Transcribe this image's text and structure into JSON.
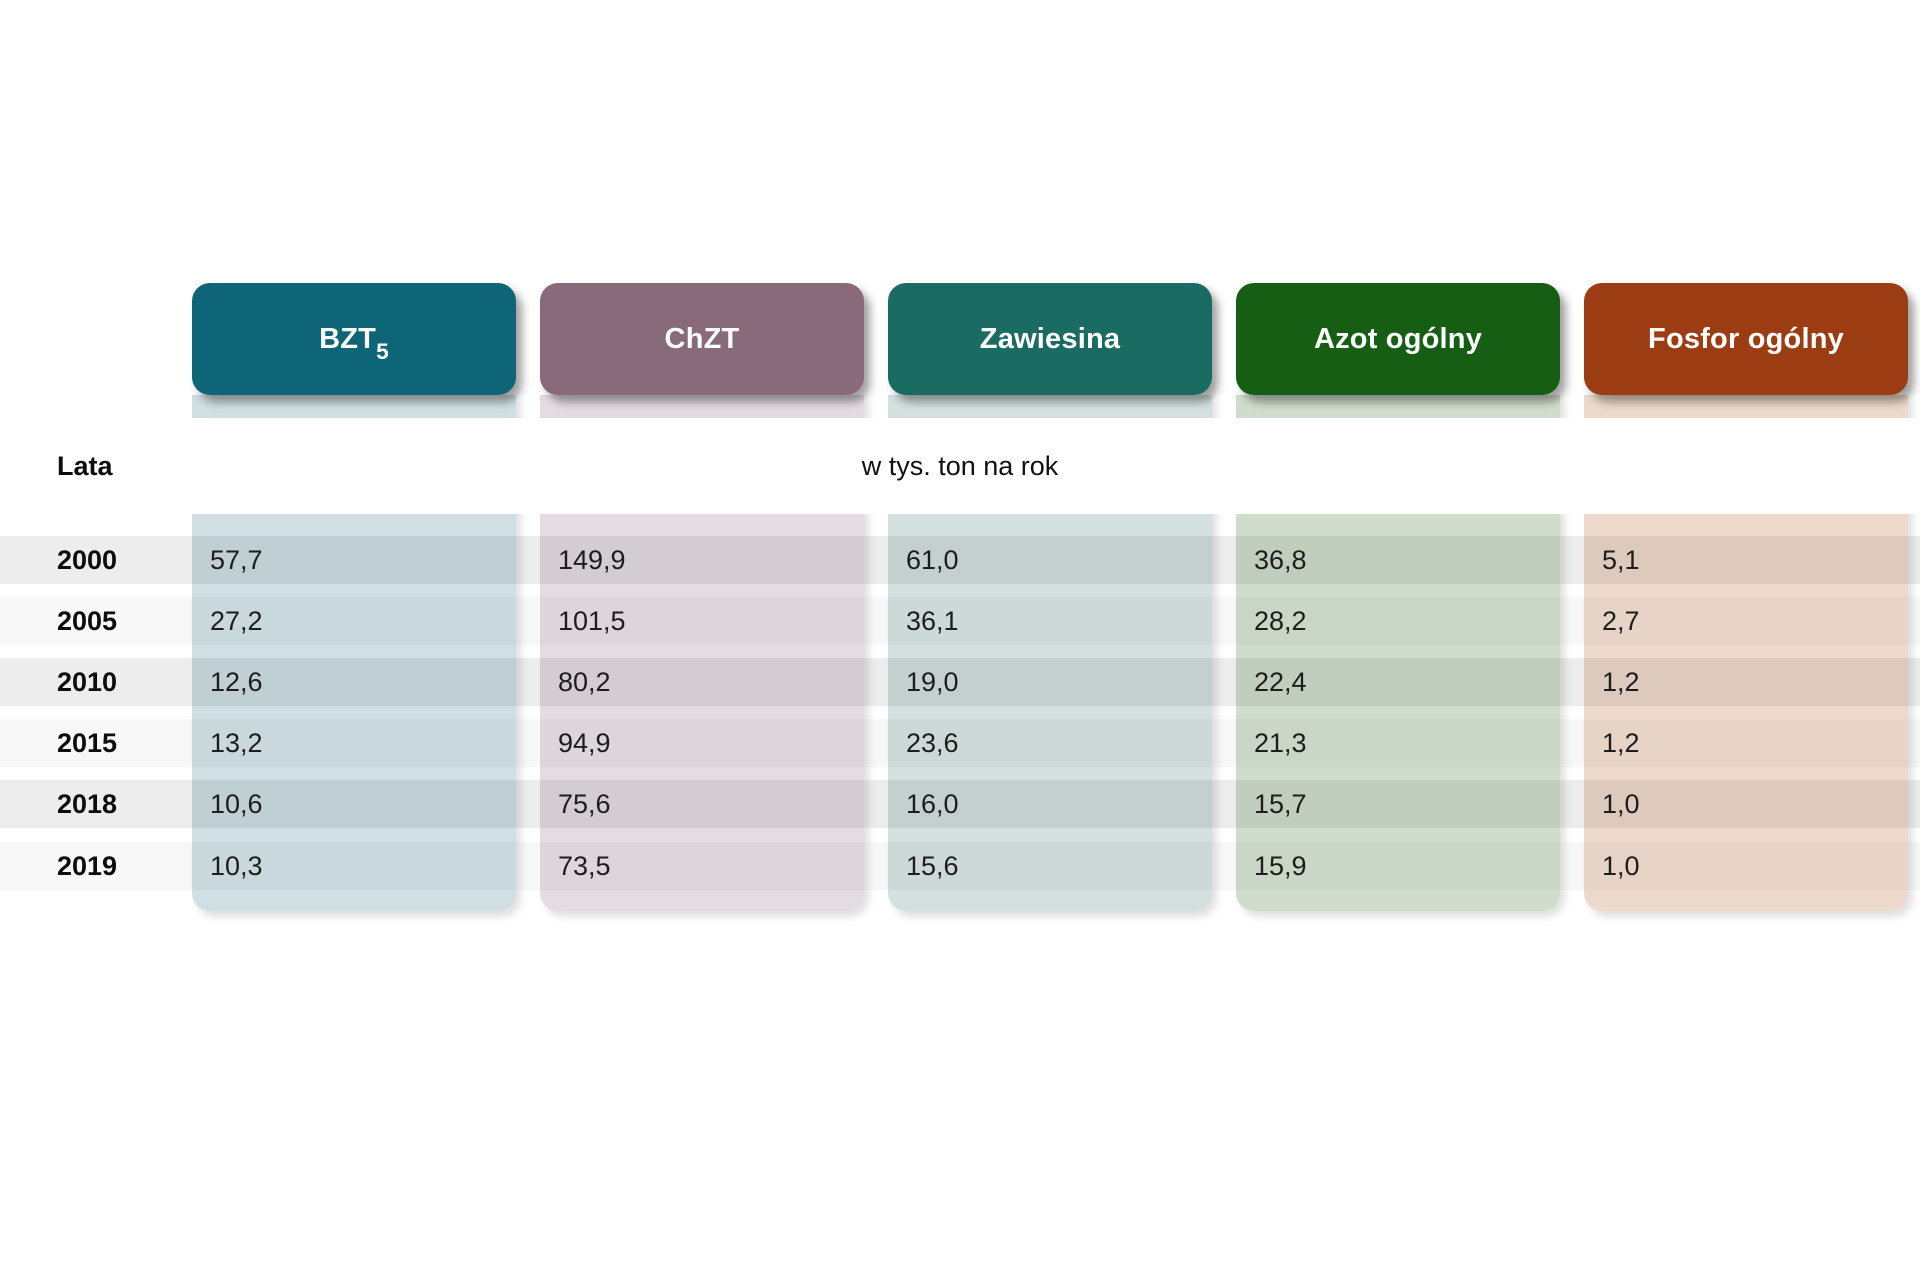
{
  "table": {
    "row_axis_label": "Lata",
    "unit_label": "w tys. ton na rok",
    "columns": [
      {
        "label": "BZT",
        "label_sub": "5",
        "header_color": "#0e6577",
        "tint": "#cfdfe3"
      },
      {
        "label": "ChZT",
        "header_color": "#886a7a",
        "tint": "#e4dce1"
      },
      {
        "label": "Zawiesina",
        "header_color": "#1a6b62",
        "tint": "#d3e0df"
      },
      {
        "label": "Azot ogólny",
        "header_color": "#175e15",
        "tint": "#d0ddcc"
      },
      {
        "label": "Fosfor ogólny",
        "header_color": "#9c3c12",
        "tint": "#eedacc"
      }
    ],
    "rows": [
      {
        "year": "2000",
        "values": [
          "57,7",
          "149,9",
          "61,0",
          "36,8",
          "5,1"
        ]
      },
      {
        "year": "2005",
        "values": [
          "27,2",
          "101,5",
          "36,1",
          "28,2",
          "2,7"
        ]
      },
      {
        "year": "2010",
        "values": [
          "12,6",
          "80,2",
          "19,0",
          "22,4",
          "1,2"
        ]
      },
      {
        "year": "2015",
        "values": [
          "13,2",
          "94,9",
          "23,6",
          "21,3",
          "1,2"
        ]
      },
      {
        "year": "2018",
        "values": [
          "10,6",
          "75,6",
          "16,0",
          "15,7",
          "1,0"
        ]
      },
      {
        "year": "2019",
        "values": [
          "10,3",
          "73,5",
          "15,6",
          "15,9",
          "1,0"
        ]
      }
    ]
  },
  "chart_data": {
    "type": "table",
    "title": "",
    "row_label": "Lata",
    "unit": "w tys. ton na rok",
    "categories": [
      "2000",
      "2005",
      "2010",
      "2015",
      "2018",
      "2019"
    ],
    "series": [
      {
        "name": "BZT5",
        "values": [
          57.7,
          27.2,
          12.6,
          13.2,
          10.6,
          10.3
        ],
        "color": "#0e6577"
      },
      {
        "name": "ChZT",
        "values": [
          149.9,
          101.5,
          80.2,
          94.9,
          75.6,
          73.5
        ],
        "color": "#886a7a"
      },
      {
        "name": "Zawiesina",
        "values": [
          61.0,
          36.1,
          19.0,
          23.6,
          16.0,
          15.6
        ],
        "color": "#1a6b62"
      },
      {
        "name": "Azot ogólny",
        "values": [
          36.8,
          28.2,
          22.4,
          21.3,
          15.7,
          15.9
        ],
        "color": "#175e15"
      },
      {
        "name": "Fosfor ogólny",
        "values": [
          5.1,
          2.7,
          1.2,
          1.2,
          1.0,
          1.0
        ],
        "color": "#9c3c12"
      }
    ]
  }
}
